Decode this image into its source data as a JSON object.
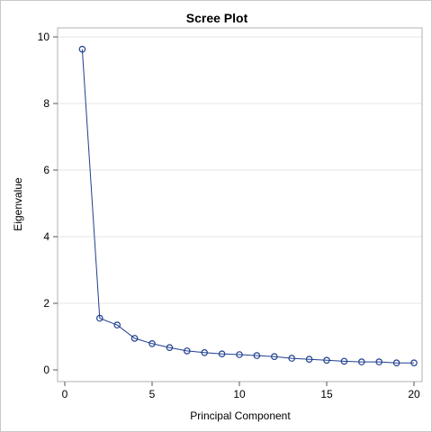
{
  "chart_data": {
    "type": "line",
    "title": "Scree Plot",
    "xlabel": "Principal Component",
    "ylabel": "Eigenvalue",
    "xlim": [
      0,
      20
    ],
    "ylim": [
      0,
      10
    ],
    "x_ticks": [
      0,
      5,
      10,
      15,
      20
    ],
    "y_ticks": [
      0,
      2,
      4,
      6,
      8,
      10
    ],
    "grid": "horizontal",
    "series_color": "#1f3f8f",
    "marker": "open-circle",
    "x": [
      1,
      2,
      3,
      4,
      5,
      6,
      7,
      8,
      9,
      10,
      11,
      12,
      13,
      14,
      15,
      16,
      17,
      18,
      19,
      20
    ],
    "values": [
      9.63,
      1.55,
      1.35,
      0.95,
      0.79,
      0.67,
      0.57,
      0.52,
      0.48,
      0.46,
      0.43,
      0.4,
      0.35,
      0.32,
      0.29,
      0.26,
      0.24,
      0.24,
      0.21,
      0.21
    ]
  }
}
